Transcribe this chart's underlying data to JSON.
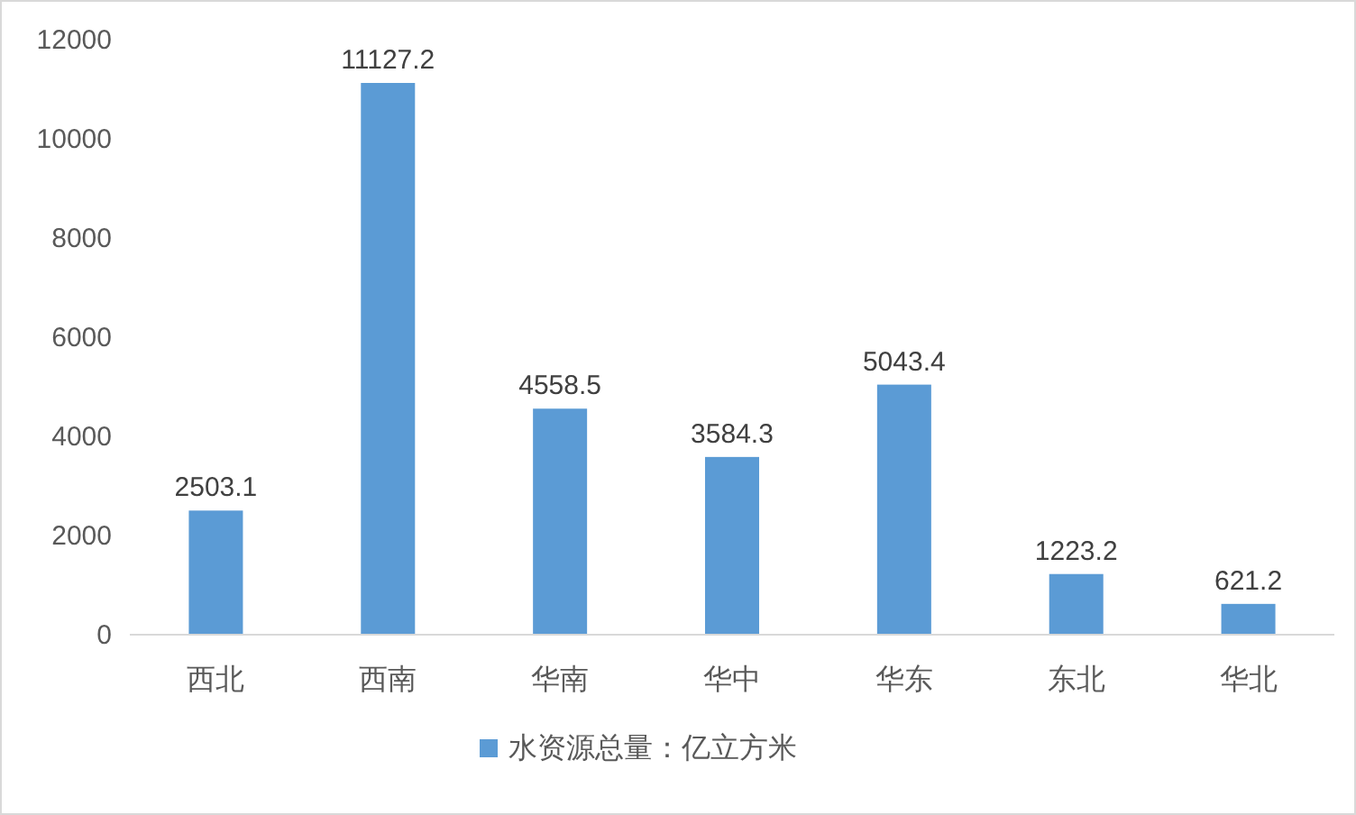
{
  "chart_data": {
    "type": "bar",
    "categories": [
      "西北",
      "西南",
      "华南",
      "华中",
      "华东",
      "东北",
      "华北"
    ],
    "series": [
      {
        "name": "水资源总量：亿立方米",
        "color": "#5b9bd5",
        "values": [
          2503.1,
          11127.2,
          4558.5,
          3584.3,
          5043.4,
          1223.2,
          621.2
        ]
      }
    ],
    "ylim": [
      0,
      12000
    ],
    "yticks": [
      0,
      2000,
      4000,
      6000,
      8000,
      10000,
      12000
    ],
    "data_labels": true,
    "legend": "bottom",
    "grid": false
  }
}
